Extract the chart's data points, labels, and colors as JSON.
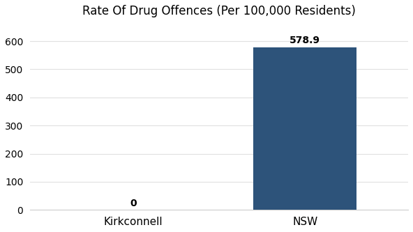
{
  "categories": [
    "Kirkconnell",
    "NSW"
  ],
  "values": [
    0,
    578.9
  ],
  "bar_color": "#2d537a",
  "title": "Rate Of Drug Offences (Per 100,000 Residents)",
  "title_fontsize": 12,
  "ylim": [
    0,
    660
  ],
  "yticks": [
    0,
    100,
    200,
    300,
    400,
    500,
    600
  ],
  "bar_width": 0.6,
  "label_fontsize": 10,
  "tick_fontsize": 10,
  "xtick_fontsize": 11,
  "background_color": "#ffffff",
  "annotation_color": "#000000",
  "grid_color": "#e0e0e0",
  "bottom_spine_color": "#cccccc"
}
